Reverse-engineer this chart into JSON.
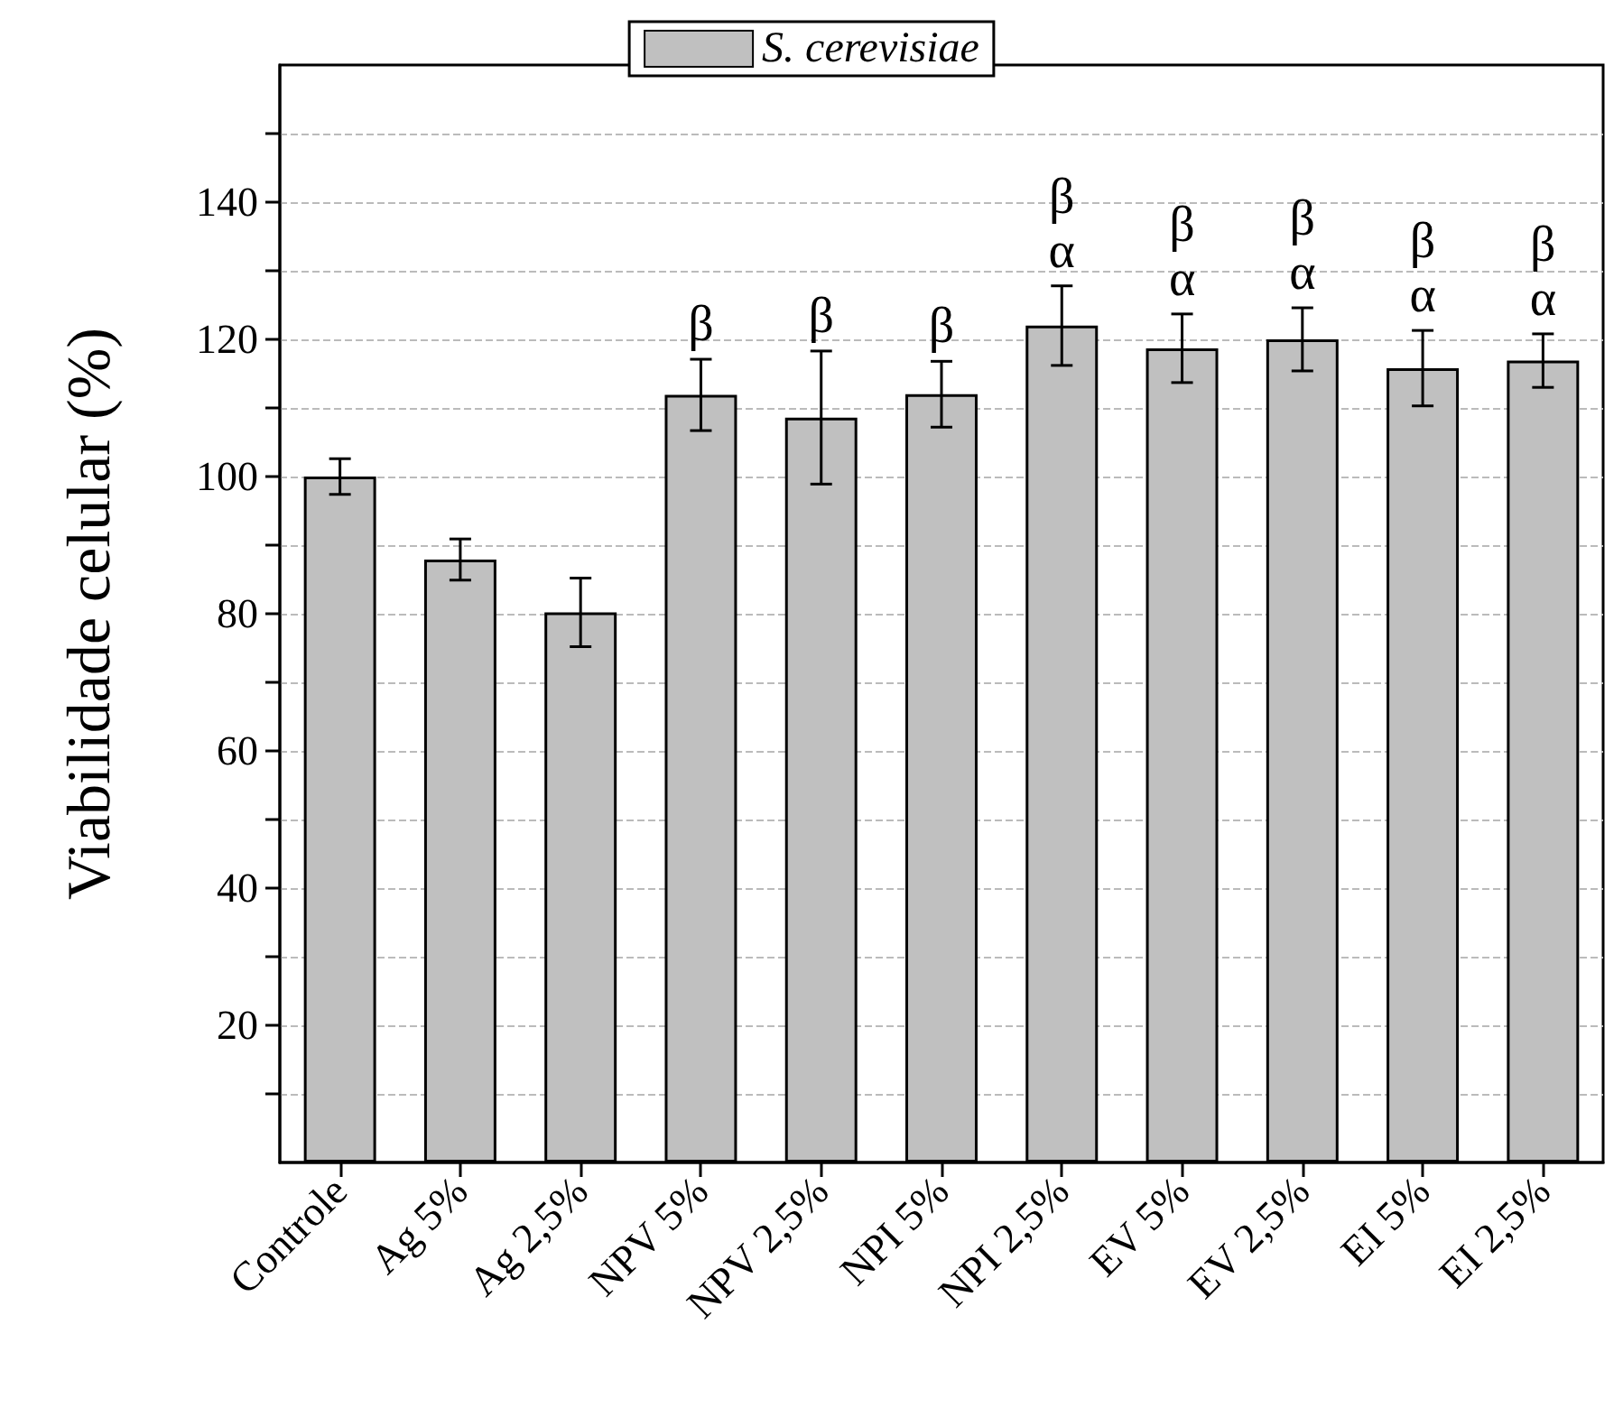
{
  "chart_data": {
    "type": "bar",
    "ylabel": "Viabilidade celular (%)",
    "categories": [
      "Controle",
      "Ag 5%",
      "Ag 2,5%",
      "NPV 5%",
      "NPV 2,5%",
      "NPI 5%",
      "NPI 2,5%",
      "EV 5%",
      "EV 2,5%",
      "EI 5%",
      "EI 2,5%"
    ],
    "series": [
      {
        "name": "S. cerevisiae",
        "color": "#c0c0c0",
        "values": [
          100,
          87.9,
          80.2,
          111.9,
          108.6,
          112,
          122,
          118.7,
          120,
          115.8,
          116.9
        ],
        "errors": [
          2.6,
          3,
          5,
          5.2,
          9.7,
          4.8,
          5.8,
          5,
          4.6,
          5.5,
          3.9
        ],
        "value_labels": [
          null,
          null,
          null,
          "β",
          "β",
          "β",
          "β\nα",
          "β\nα",
          "β\nα",
          "β\nα",
          "β\nα"
        ]
      }
    ],
    "ylim": [
      0,
      160
    ],
    "yticks": [
      {
        "value": 10,
        "label": null
      },
      20,
      {
        "value": 30,
        "label": null
      },
      40,
      {
        "value": 50,
        "label": null
      },
      60,
      {
        "value": 70,
        "label": null
      },
      80,
      {
        "value": 90,
        "label": null
      },
      100,
      {
        "value": 110,
        "label": null
      },
      120,
      {
        "value": 130,
        "label": null
      },
      140,
      {
        "value": 150,
        "label": null
      }
    ],
    "grid": "y",
    "legend": "top"
  }
}
